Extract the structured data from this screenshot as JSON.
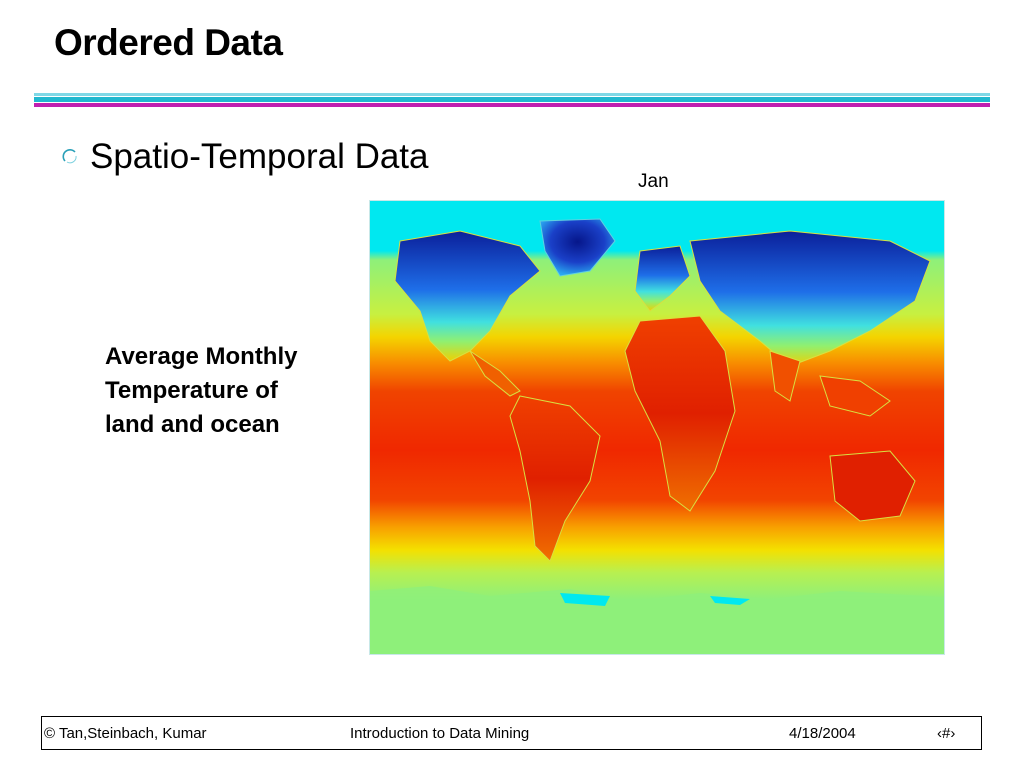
{
  "slide": {
    "title": "Ordered Data",
    "bullet": "Spatio-Temporal Data",
    "map_label": "Jan",
    "caption_lines": [
      "Average Monthly",
      "Temperature of",
      "land and ocean"
    ]
  },
  "footer": {
    "left": "© Tan,Steinbach, Kumar",
    "center": "Introduction to Data Mining",
    "date": "4/18/2004",
    "page": "‹#›"
  },
  "icons": {
    "bullet": "open-circle-bullet-icon"
  },
  "colors": {
    "rule_top": "#7fd8e6",
    "rule_mid": "#21b8cf",
    "rule_bottom": "#c020b0",
    "cold": "#0b1f9a",
    "cool": "#00e8f0",
    "mild": "#8ef07a",
    "warm": "#f4d400",
    "hot": "#f02800"
  }
}
